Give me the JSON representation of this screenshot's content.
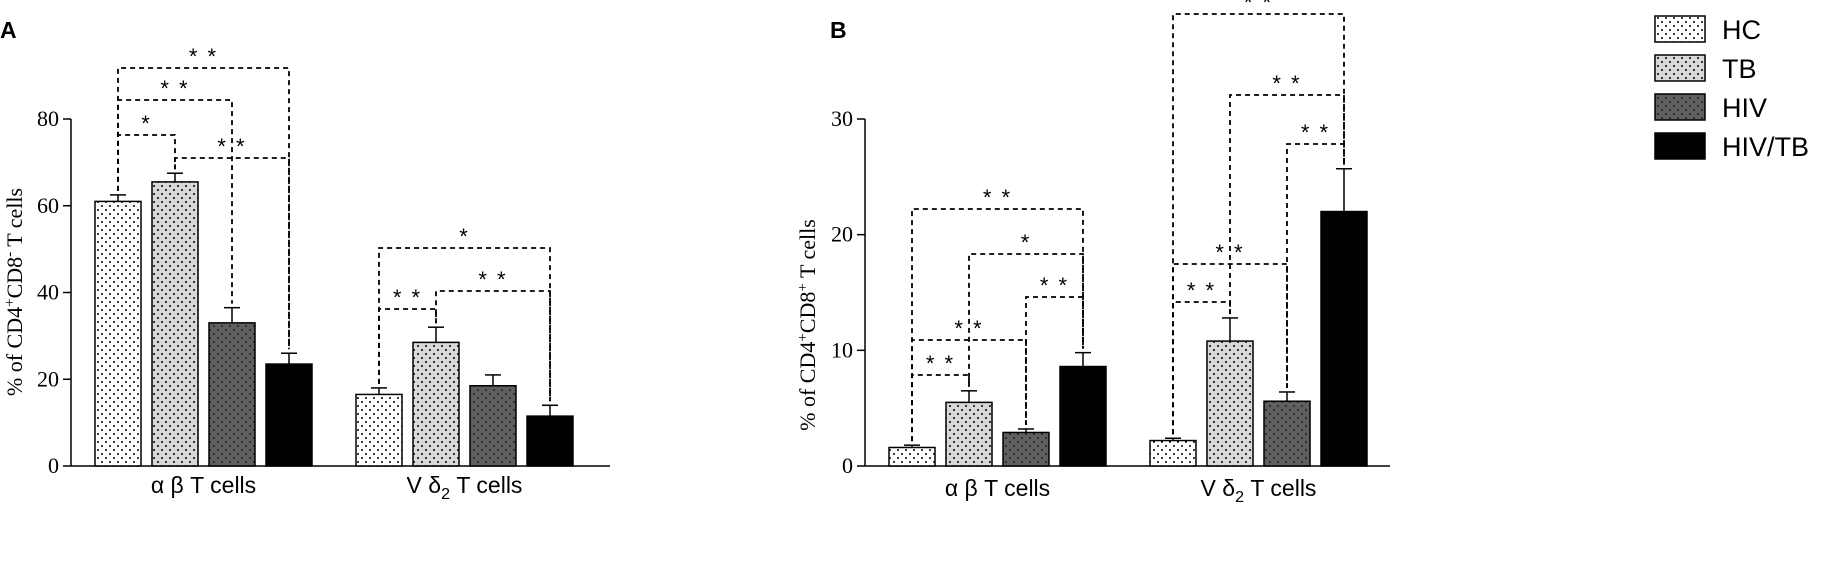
{
  "chart_data": [
    {
      "type": "bar",
      "panel_label": "A",
      "ylabel": "% of CD4+CD8- T cells",
      "ylabel_parts": {
        "prefix": "% of CD4",
        "sup1": "+",
        "mid": "CD8",
        "sup2": "-",
        "suffix": " T cells"
      },
      "ylim": [
        0,
        80
      ],
      "yticks": [
        "0",
        "20",
        "40",
        "60",
        "80"
      ],
      "grid": false,
      "categories": [
        {
          "prefix": "α β T cells",
          "sub": "",
          "suffix": ""
        },
        {
          "prefix": "V δ",
          "sub": "2",
          "suffix": " T cells"
        }
      ],
      "series": [
        {
          "name": "HC",
          "values": [
            61,
            16.5
          ],
          "errors": [
            1.5,
            1.5
          ]
        },
        {
          "name": "TB",
          "values": [
            65.5,
            28.5
          ],
          "errors": [
            2.0,
            3.5
          ]
        },
        {
          "name": "HIV",
          "values": [
            33,
            18.5
          ],
          "errors": [
            3.5,
            2.5
          ]
        },
        {
          "name": "HIV/TB",
          "values": [
            23.5,
            11.5
          ],
          "errors": [
            2.5,
            2.5
          ]
        }
      ],
      "significance": [
        {
          "group": 0,
          "from": 0,
          "to": 1,
          "label": "*"
        },
        {
          "group": 0,
          "from": 0,
          "to": 2,
          "label": "* *"
        },
        {
          "group": 0,
          "from": 0,
          "to": 3,
          "label": "* *"
        },
        {
          "group": 0,
          "from": 1,
          "to": 3,
          "label": "* *"
        },
        {
          "group": 1,
          "from": 0,
          "to": 1,
          "label": "* *"
        },
        {
          "group": 1,
          "from": 0,
          "to": 3,
          "label": "*"
        },
        {
          "group": 1,
          "from": 1,
          "to": 3,
          "label": "* *"
        }
      ]
    },
    {
      "type": "bar",
      "panel_label": "B",
      "ylabel": "% of CD4+CD8+ T cells",
      "ylabel_parts": {
        "prefix": "% of CD4",
        "sup1": "+",
        "mid": "CD8",
        "sup2": "+",
        "suffix": " T cells"
      },
      "ylim": [
        0,
        30
      ],
      "yticks": [
        "0",
        "10",
        "20",
        "30"
      ],
      "grid": false,
      "categories": [
        {
          "prefix": "α β T cells",
          "sub": "",
          "suffix": ""
        },
        {
          "prefix": "V δ",
          "sub": "2",
          "suffix": " T cells"
        }
      ],
      "series": [
        {
          "name": "HC",
          "values": [
            1.6,
            2.2
          ],
          "errors": [
            0.2,
            0.2
          ]
        },
        {
          "name": "TB",
          "values": [
            5.5,
            10.8
          ],
          "errors": [
            1.0,
            2.0
          ]
        },
        {
          "name": "HIV",
          "values": [
            2.9,
            5.6
          ],
          "errors": [
            0.3,
            0.8
          ]
        },
        {
          "name": "HIV/TB",
          "values": [
            8.6,
            22.0
          ],
          "errors": [
            1.2,
            3.7
          ]
        }
      ],
      "significance": [
        {
          "group": 0,
          "from": 0,
          "to": 1,
          "label": "* *"
        },
        {
          "group": 0,
          "from": 0,
          "to": 2,
          "label": "* *"
        },
        {
          "group": 0,
          "from": 0,
          "to": 3,
          "label": "* *"
        },
        {
          "group": 0,
          "from": 1,
          "to": 3,
          "label": "*"
        },
        {
          "group": 0,
          "from": 2,
          "to": 3,
          "label": "* *"
        },
        {
          "group": 1,
          "from": 0,
          "to": 1,
          "label": "* *"
        },
        {
          "group": 1,
          "from": 0,
          "to": 2,
          "label": "* *"
        },
        {
          "group": 1,
          "from": 0,
          "to": 3,
          "label": "* *"
        },
        {
          "group": 1,
          "from": 1,
          "to": 3,
          "label": "* *"
        },
        {
          "group": 1,
          "from": 2,
          "to": 3,
          "label": "* *"
        }
      ]
    }
  ],
  "legend": {
    "position": "top-right",
    "items": [
      {
        "name": "HC",
        "style": "dotted-white"
      },
      {
        "name": "TB",
        "style": "dotted-lightgray"
      },
      {
        "name": "HIV",
        "style": "dotted-darkgray"
      },
      {
        "name": "HIV/TB",
        "style": "solid-black"
      }
    ]
  },
  "colors": {
    "HC": "#ffffff",
    "TB": "#d8d8d8",
    "HIV": "#5f5f5f",
    "HIV/TB": "#000000"
  }
}
